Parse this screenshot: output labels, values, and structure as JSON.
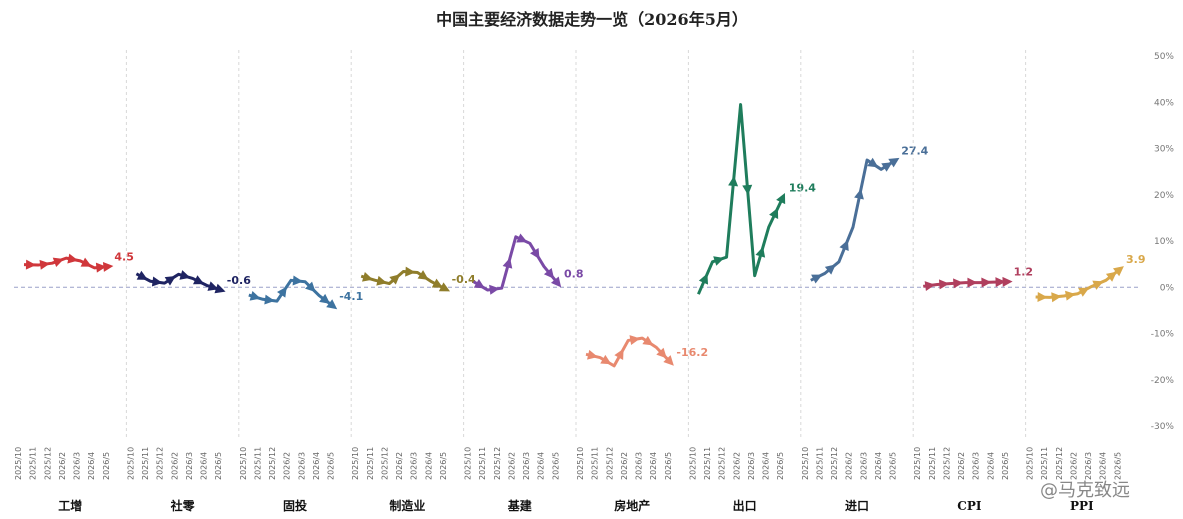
{
  "chart_data": {
    "type": "line",
    "title": "中国主要经济数据走势一览（2026年5月）",
    "ylim": [
      -30,
      50
    ],
    "y_ticks": [
      -30,
      -20,
      -10,
      0,
      10,
      20,
      30,
      40,
      50
    ],
    "y_tick_labels": [
      "-30%",
      "-20%",
      "-10%",
      "0%",
      "10%",
      "20%",
      "30%",
      "40%",
      "50%"
    ],
    "grid": false,
    "months": [
      "2025/10",
      "2025/11",
      "2025/12",
      "2026/2",
      "2026/3",
      "2026/4",
      "2026/5"
    ],
    "series": [
      {
        "name": "工增",
        "color": "#d0373b",
        "values": [
          4.9,
          4.8,
          5.2,
          6.3,
          5.7,
          4.2,
          4.5
        ],
        "end_label": "4.5"
      },
      {
        "name": "社零",
        "color": "#1f2462",
        "values": [
          2.9,
          1.3,
          0.9,
          2.8,
          1.9,
          0.4,
          -0.6
        ],
        "end_label": "-0.6"
      },
      {
        "name": "固投",
        "color": "#3d73a0",
        "values": [
          -1.7,
          -2.6,
          -3.0,
          1.5,
          1.2,
          -1.8,
          -4.1
        ],
        "end_label": "-4.1"
      },
      {
        "name": "制造业",
        "color": "#8f7d2b",
        "values": [
          2.4,
          1.5,
          0.8,
          3.4,
          3.2,
          1.2,
          -0.4
        ],
        "end_label": "-0.4"
      },
      {
        "name": "基建",
        "color": "#7a4aa6",
        "values": [
          1.2,
          -0.6,
          -0.2,
          10.9,
          9.5,
          4.5,
          0.8
        ],
        "end_label": "0.8"
      },
      {
        "name": "房地产",
        "color": "#e8896f",
        "values": [
          -14.5,
          -15.2,
          -17.0,
          -11.5,
          -11.0,
          -13.0,
          -16.2
        ],
        "end_label": "-16.2"
      },
      {
        "name": "出口",
        "color": "#1f7d5c",
        "values": [
          -1.5,
          5.5,
          6.5,
          39.5,
          2.5,
          13.0,
          19.4
        ],
        "end_label": "19.4"
      },
      {
        "name": "进口",
        "color": "#4a6f98",
        "values": [
          1.5,
          3.0,
          5.5,
          13.0,
          27.5,
          25.5,
          27.4
        ],
        "end_label": "27.4"
      },
      {
        "name": "CPI",
        "color": "#b03f5e",
        "values": [
          0.2,
          0.6,
          0.8,
          1.0,
          1.0,
          1.1,
          1.2
        ],
        "end_label": "1.2"
      },
      {
        "name": "PPI",
        "color": "#d9a84a",
        "values": [
          -2.1,
          -2.2,
          -1.9,
          -1.4,
          0.2,
          1.5,
          3.9
        ],
        "end_label": "3.9"
      }
    ]
  },
  "watermark": "@马克致远"
}
